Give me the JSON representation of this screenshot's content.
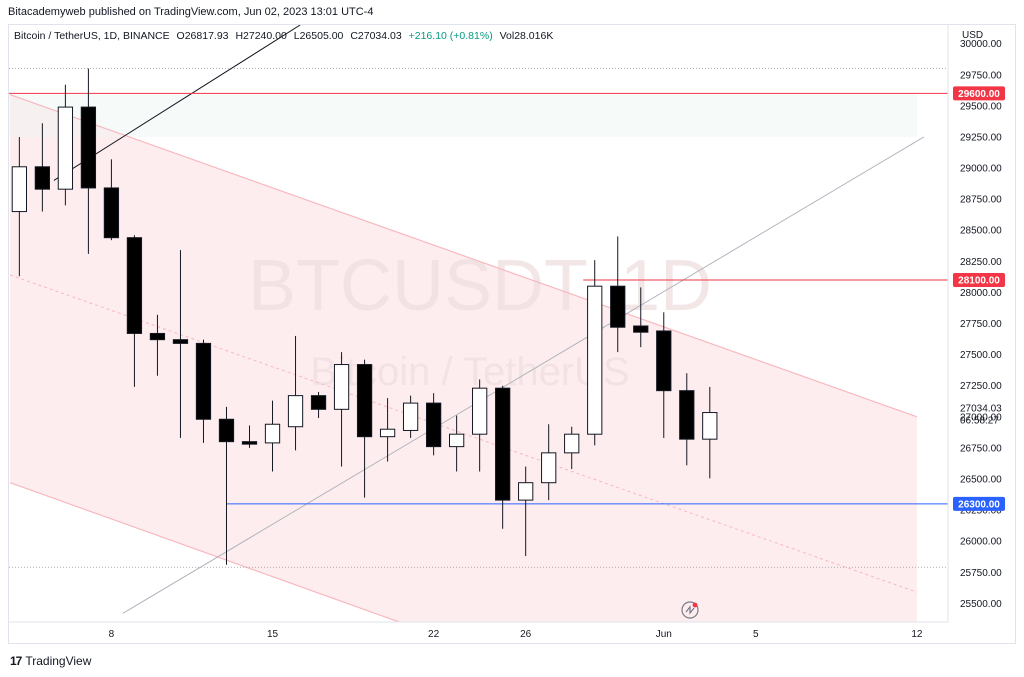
{
  "header": {
    "published": "Bitacademyweb published on TradingView.com, Jun 02, 2023 13:01 UTC-4"
  },
  "legend": {
    "symbol": "Bitcoin / TetherUS, 1D, BINANCE",
    "open": "O26817.93",
    "high": "H27240.00",
    "low": "L26505.00",
    "close": "C27034.03",
    "change": "+216.10 (+0.81%)",
    "volume": "Vol28.016K"
  },
  "watermark": {
    "line1": "BTCUSDT, 1D",
    "line2": "Bitcoin / TetherUS"
  },
  "currency": "USD",
  "footer": {
    "logo_text": "TradingView",
    "logo_glyph": "17"
  },
  "price_tags": [
    {
      "price": 29600,
      "label": "29600.00",
      "color": "#f23645"
    },
    {
      "price": 28100,
      "label": "28100.00",
      "color": "#f23645"
    },
    {
      "price": 26300,
      "label": "26300.00",
      "color": "#2962ff"
    }
  ],
  "last_price": {
    "label": "27034.03",
    "countdown": "06:58:27"
  },
  "chart_data": {
    "type": "candlestick",
    "y_range": [
      25350,
      30150
    ],
    "y_ticks": [
      25500,
      25750,
      26000,
      26250,
      26500,
      26750,
      27000,
      27250,
      27500,
      27750,
      28000,
      28250,
      28500,
      28750,
      29000,
      29250,
      29500,
      29750,
      30000
    ],
    "y_tick_labels": [
      "25500.00",
      "25750.00",
      "26000.00",
      "26250.00",
      "26500.00",
      "26750.00",
      "27000.00",
      "27250.00",
      "27500.00",
      "27750.00",
      "28000.00",
      "28250.00",
      "28500.00",
      "28750.00",
      "29000.00",
      "29250.00",
      "29500.00",
      "29750.00",
      "30000.00"
    ],
    "x_range": [
      3.55,
      44.35
    ],
    "x_ticks": [
      {
        "day": 8,
        "label": "8"
      },
      {
        "day": 15,
        "label": "15"
      },
      {
        "day": 22,
        "label": "22"
      },
      {
        "day": 26,
        "label": "26"
      },
      {
        "day": 32,
        "label": "Jun"
      },
      {
        "day": 36,
        "label": "5"
      },
      {
        "day": 43,
        "label": "12"
      }
    ],
    "candles": [
      {
        "day": 4,
        "o": 28650,
        "h": 29250,
        "l": 28130,
        "c": 29010
      },
      {
        "day": 5,
        "o": 29010,
        "h": 29360,
        "l": 28650,
        "c": 28830
      },
      {
        "day": 6,
        "o": 28830,
        "h": 29670,
        "l": 28700,
        "c": 29490
      },
      {
        "day": 7,
        "o": 29490,
        "h": 29800,
        "l": 28310,
        "c": 28840
      },
      {
        "day": 8,
        "o": 28840,
        "h": 29070,
        "l": 28420,
        "c": 28440
      },
      {
        "day": 9,
        "o": 28440,
        "h": 28460,
        "l": 27240,
        "c": 27670
      },
      {
        "day": 10,
        "o": 27670,
        "h": 27820,
        "l": 27330,
        "c": 27620
      },
      {
        "day": 11,
        "o": 27620,
        "h": 28340,
        "l": 26830,
        "c": 27590
      },
      {
        "day": 12,
        "o": 27590,
        "h": 27620,
        "l": 26790,
        "c": 26980
      },
      {
        "day": 13,
        "o": 26980,
        "h": 27080,
        "l": 25810,
        "c": 26800
      },
      {
        "day": 14,
        "o": 26800,
        "h": 26930,
        "l": 26750,
        "c": 26780
      },
      {
        "day": 15,
        "o": 26790,
        "h": 27130,
        "l": 26560,
        "c": 26940
      },
      {
        "day": 16,
        "o": 26920,
        "h": 27650,
        "l": 26730,
        "c": 27170
      },
      {
        "day": 17,
        "o": 27170,
        "h": 27200,
        "l": 26990,
        "c": 27060
      },
      {
        "day": 18,
        "o": 27060,
        "h": 27520,
        "l": 26600,
        "c": 27420
      },
      {
        "day": 19,
        "o": 27420,
        "h": 27460,
        "l": 26350,
        "c": 26840
      },
      {
        "day": 20,
        "o": 26840,
        "h": 27150,
        "l": 26640,
        "c": 26900
      },
      {
        "day": 21,
        "o": 26890,
        "h": 27170,
        "l": 26830,
        "c": 27110
      },
      {
        "day": 22,
        "o": 27110,
        "h": 27190,
        "l": 26690,
        "c": 26760
      },
      {
        "day": 23,
        "o": 26760,
        "h": 27010,
        "l": 26560,
        "c": 26860
      },
      {
        "day": 24,
        "o": 26860,
        "h": 27300,
        "l": 26560,
        "c": 27230
      },
      {
        "day": 25,
        "o": 27230,
        "h": 27250,
        "l": 26100,
        "c": 26330
      },
      {
        "day": 26,
        "o": 26330,
        "h": 26600,
        "l": 25880,
        "c": 26470
      },
      {
        "day": 27,
        "o": 26470,
        "h": 26940,
        "l": 26330,
        "c": 26710
      },
      {
        "day": 28,
        "o": 26710,
        "h": 26920,
        "l": 26580,
        "c": 26860
      },
      {
        "day": 29,
        "o": 26860,
        "h": 28260,
        "l": 26770,
        "c": 28050
      },
      {
        "day": 30,
        "o": 28050,
        "h": 28450,
        "l": 27520,
        "c": 27720
      },
      {
        "day": 31,
        "o": 27730,
        "h": 28040,
        "l": 27560,
        "c": 27680
      },
      {
        "day": 32,
        "o": 27690,
        "h": 27840,
        "l": 26830,
        "c": 27210
      },
      {
        "day": 33,
        "o": 27210,
        "h": 27350,
        "l": 26610,
        "c": 26820
      },
      {
        "day": 34,
        "o": 26820,
        "h": 27240,
        "l": 26505,
        "c": 27034
      }
    ],
    "channel": {
      "upper": [
        {
          "day": 3.6,
          "price": 29590
        },
        {
          "day": 43,
          "price": 27000
        }
      ],
      "middle": [
        {
          "day": 3.6,
          "price": 28140
        },
        {
          "day": 43,
          "price": 25590
        }
      ],
      "lower": [
        {
          "day": 3.6,
          "price": 26470
        },
        {
          "day": 20.5,
          "price": 25350
        }
      ]
    },
    "trendlines": [
      {
        "from": {
          "day": 5.5,
          "price": 28900
        },
        "to": {
          "day": 16.2,
          "price": 30150
        },
        "color": "#131722"
      },
      {
        "from": {
          "day": 8.5,
          "price": 25420
        },
        "to": {
          "day": 43.3,
          "price": 29250
        },
        "color": "#b2b5be"
      }
    ],
    "horizontal_levels": [
      {
        "price": 29600,
        "from_day": 3.55,
        "color": "#f23645"
      },
      {
        "price": 28100,
        "from_day": 28.5,
        "color": "#f23645"
      },
      {
        "price": 26300,
        "from_day": 13,
        "color": "#2962ff"
      }
    ],
    "dotted_levels": [
      {
        "price": 29800
      },
      {
        "price": 25790
      }
    ]
  }
}
